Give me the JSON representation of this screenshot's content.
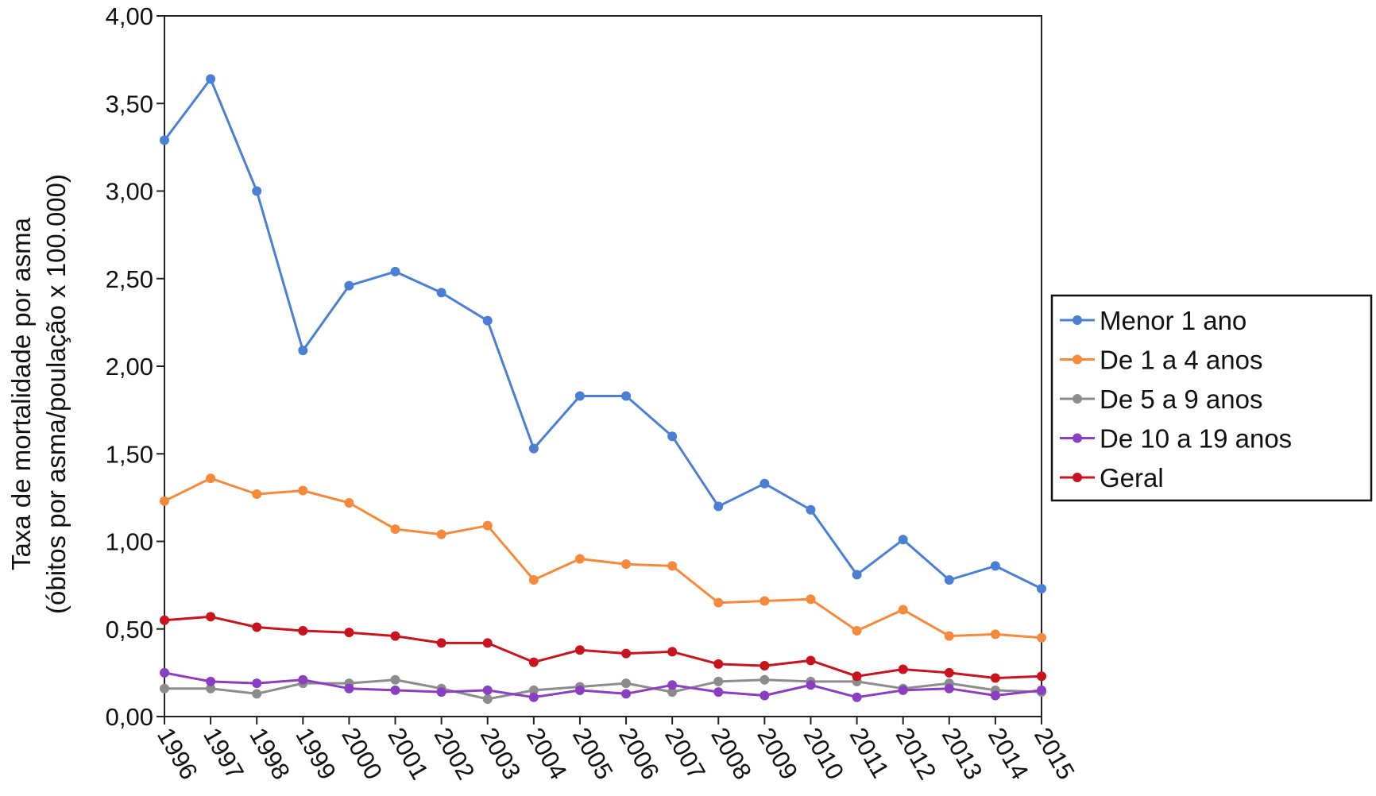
{
  "chart_data": {
    "type": "line",
    "title": "",
    "xlabel": "",
    "ylabel_line1": "Taxa de mortalidade por asma",
    "ylabel_line2": "(óbitos por asma/poulação x 100.000)",
    "ylim": [
      0,
      4
    ],
    "y_ticks": [
      "0,00",
      "0,50",
      "1,00",
      "1,50",
      "2,00",
      "2,50",
      "3,00",
      "3,50",
      "4,00"
    ],
    "y_tick_values": [
      0,
      0.5,
      1,
      1.5,
      2,
      2.5,
      3,
      3.5,
      4
    ],
    "categories": [
      "1996",
      "1997",
      "1998",
      "1999",
      "2000",
      "2001",
      "2002",
      "2003",
      "2004",
      "2005",
      "2006",
      "2007",
      "2008",
      "2009",
      "2010",
      "2011",
      "2012",
      "2013",
      "2014",
      "2015"
    ],
    "grid": false,
    "legend_position": "right",
    "series": [
      {
        "name": "Menor 1 ano",
        "color": "#4a7fd4",
        "values": [
          3.29,
          3.64,
          3.0,
          2.09,
          2.46,
          2.54,
          2.42,
          2.26,
          1.53,
          1.83,
          1.83,
          1.6,
          1.2,
          1.33,
          1.18,
          0.81,
          1.01,
          0.78,
          0.86,
          0.73
        ]
      },
      {
        "name": "De 1 a 4 anos",
        "color": "#f58a3c",
        "values": [
          1.23,
          1.36,
          1.27,
          1.29,
          1.22,
          1.07,
          1.04,
          1.09,
          0.78,
          0.9,
          0.87,
          0.86,
          0.65,
          0.66,
          0.67,
          0.49,
          0.61,
          0.46,
          0.47,
          0.45
        ]
      },
      {
        "name": "De 5 a 9 anos",
        "color": "#8c8c8c",
        "values": [
          0.16,
          0.16,
          0.13,
          0.19,
          0.19,
          0.21,
          0.16,
          0.1,
          0.15,
          0.17,
          0.19,
          0.14,
          0.2,
          0.21,
          0.2,
          0.2,
          0.16,
          0.19,
          0.15,
          0.14
        ]
      },
      {
        "name": "De 10 a 19 anos",
        "color": "#8a3fc2",
        "values": [
          0.25,
          0.2,
          0.19,
          0.21,
          0.16,
          0.15,
          0.14,
          0.15,
          0.11,
          0.15,
          0.13,
          0.18,
          0.14,
          0.12,
          0.18,
          0.11,
          0.15,
          0.16,
          0.12,
          0.15
        ]
      },
      {
        "name": "Geral",
        "color": "#c8141e",
        "values": [
          0.55,
          0.57,
          0.51,
          0.49,
          0.48,
          0.46,
          0.42,
          0.42,
          0.31,
          0.38,
          0.36,
          0.37,
          0.3,
          0.29,
          0.32,
          0.23,
          0.27,
          0.25,
          0.22,
          0.23
        ]
      }
    ]
  }
}
